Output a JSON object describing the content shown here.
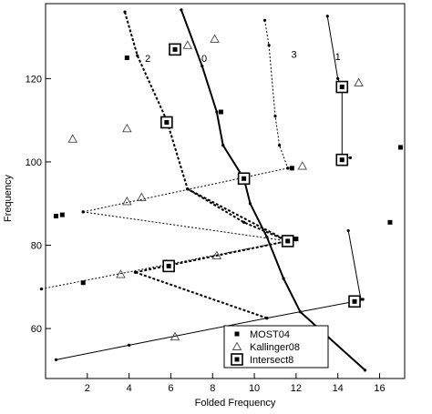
{
  "chart_data": {
    "type": "scatter",
    "xlabel": "Folded Frequency",
    "ylabel": "Frequency",
    "xlim": [
      0,
      17.2
    ],
    "ylim": [
      48,
      138
    ],
    "xticks": [
      2,
      4,
      6,
      8,
      10,
      12,
      14,
      16
    ],
    "yticks": [
      60,
      80,
      100,
      120
    ],
    "grid": false,
    "legend_position": "bottom-right",
    "legend": [
      {
        "label": "MOST04",
        "marker": "filled-square"
      },
      {
        "label": "Kallinger08",
        "marker": "open-triangle"
      },
      {
        "label": "Intersect8",
        "marker": "open-square-dot"
      }
    ],
    "ridge_labels": [
      {
        "text": "0",
        "x": 7.6,
        "y": 124
      },
      {
        "text": "1",
        "x": 14.0,
        "y": 124.5
      },
      {
        "text": "2",
        "x": 4.9,
        "y": 124
      },
      {
        "text": "3",
        "x": 11.9,
        "y": 125
      }
    ],
    "series": [
      {
        "name": "MOST04",
        "marker": "filled-square",
        "points": [
          [
            0.5,
            87
          ],
          [
            0.8,
            87.3
          ],
          [
            3.9,
            125
          ],
          [
            5.7,
            109.5
          ],
          [
            8.4,
            112
          ],
          [
            11.8,
            98.5
          ],
          [
            17.0,
            103.5
          ],
          [
            16.5,
            85.5
          ],
          [
            1.8,
            71
          ],
          [
            12.0,
            81.5
          ]
        ]
      },
      {
        "name": "Kallinger08",
        "marker": "open-triangle",
        "points": [
          [
            1.3,
            105.5
          ],
          [
            3.9,
            108
          ],
          [
            6.8,
            128
          ],
          [
            8.1,
            129.5
          ],
          [
            15.0,
            119
          ],
          [
            12.3,
            99
          ],
          [
            4.6,
            91.5
          ],
          [
            3.9,
            90.5
          ],
          [
            3.6,
            73
          ],
          [
            8.2,
            77.5
          ],
          [
            6.2,
            58
          ],
          [
            5.8,
            75.5
          ],
          [
            11.6,
            81
          ]
        ]
      },
      {
        "name": "Intersect8",
        "marker": "open-square-dot",
        "points": [
          [
            6.2,
            127
          ],
          [
            5.8,
            109.5
          ],
          [
            9.5,
            96
          ],
          [
            14.2,
            118
          ],
          [
            14.2,
            100.5
          ],
          [
            11.6,
            81
          ],
          [
            5.9,
            75
          ],
          [
            14.8,
            66.5
          ]
        ]
      }
    ],
    "lines": [
      {
        "name": "0",
        "style": "thick",
        "points": [
          [
            6.5,
            136.5
          ],
          [
            7.5,
            123
          ],
          [
            8.2,
            112
          ],
          [
            8.5,
            104
          ],
          [
            9.5,
            96
          ],
          [
            9.8,
            90
          ],
          [
            10.6,
            82
          ],
          [
            11.4,
            72
          ],
          [
            12.2,
            64
          ],
          [
            15.3,
            50
          ]
        ]
      },
      {
        "name": "1",
        "style": "thin",
        "points": [
          [
            13.5,
            135
          ],
          [
            14.0,
            120
          ],
          [
            14.2,
            118
          ],
          [
            14.2,
            101
          ],
          [
            14.6,
            101
          ]
        ]
      },
      {
        "name": "1b",
        "style": "thin",
        "points": [
          [
            14.5,
            83.5
          ],
          [
            15.1,
            67
          ]
        ]
      },
      {
        "name": "2",
        "style": "dashed-thick",
        "points": [
          [
            3.8,
            136
          ],
          [
            4.4,
            125.5
          ],
          [
            5.8,
            110
          ],
          [
            6.8,
            93.5
          ],
          [
            9.5,
            85.5
          ],
          [
            11.6,
            81
          ],
          [
            12.0,
            81.5
          ]
        ]
      },
      {
        "name": "3",
        "style": "dashed-thin",
        "points": [
          [
            10.5,
            134
          ],
          [
            10.7,
            128
          ],
          [
            11.0,
            111
          ],
          [
            11.2,
            104
          ],
          [
            11.6,
            98.5
          ]
        ]
      },
      {
        "name": "d1",
        "style": "dashed-thin",
        "points": [
          [
            1.8,
            88
          ],
          [
            11.6,
            98.5
          ]
        ]
      },
      {
        "name": "d2",
        "style": "dashed-thin",
        "points": [
          [
            1.8,
            88
          ],
          [
            11.6,
            81
          ]
        ]
      },
      {
        "name": "d3",
        "style": "dashed-thin",
        "points": [
          [
            -0.2,
            69.5
          ],
          [
            11.6,
            81
          ]
        ]
      },
      {
        "name": "d4",
        "style": "dashed-thick",
        "points": [
          [
            6.8,
            93.5
          ],
          [
            11.6,
            81
          ]
        ]
      },
      {
        "name": "d5",
        "style": "dashed-thick",
        "points": [
          [
            4.3,
            73.5
          ],
          [
            11.6,
            81
          ]
        ]
      },
      {
        "name": "d6",
        "style": "dashed-thick",
        "points": [
          [
            4.3,
            73.5
          ],
          [
            10.6,
            62.5
          ]
        ]
      },
      {
        "name": "base",
        "style": "thin",
        "points": [
          [
            0.5,
            52.5
          ],
          [
            4.0,
            56
          ],
          [
            10.6,
            62.5
          ],
          [
            14.8,
            66.5
          ],
          [
            15.2,
            67
          ]
        ]
      }
    ]
  }
}
